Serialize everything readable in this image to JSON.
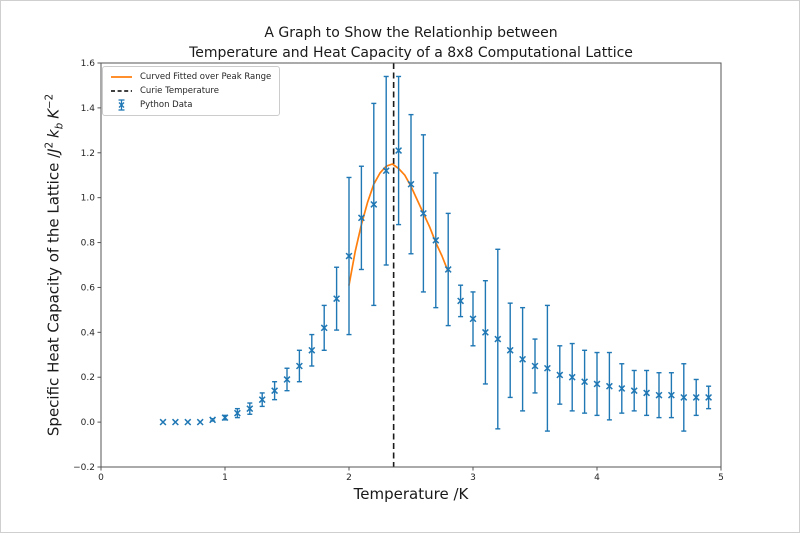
{
  "figure": {
    "title_line1": "A Graph to Show the Relationhip between",
    "title_line2": "Temperature and Heat Capacity of a 8x8 Computational Lattice",
    "xlabel": "Temperature /K",
    "ylabel_parts": {
      "p1": "Specific Heat Capacity of the Lattice /",
      "j": "J",
      "j_sup": "2",
      "k": "k",
      "k_sub": "b",
      "K": "K",
      "K_sup": "−2"
    }
  },
  "legend": {
    "items": [
      {
        "label": "Curved Fitted over Peak Range",
        "type": "line",
        "color": "#ff7f0e"
      },
      {
        "label": "Curie Temperature",
        "type": "dashed",
        "color": "#262626"
      },
      {
        "label": "Python Data",
        "type": "errorbar",
        "color": "#1f77b4"
      }
    ]
  },
  "chart_data": {
    "type": "scatter",
    "title": "A Graph to Show the Relationhip between Temperature and Heat Capacity of a 8x8 Computational Lattice",
    "xlabel": "Temperature /K",
    "ylabel": "Specific Heat Capacity of the Lattice /J^2 k_b K^-2",
    "xlim": [
      0,
      5
    ],
    "ylim": [
      -0.2,
      1.6
    ],
    "xticks": [
      0,
      1,
      2,
      3,
      4,
      5
    ],
    "xtick_labels": [
      "0",
      "1",
      "2",
      "3",
      "4",
      "5"
    ],
    "yticks": [
      -0.2,
      0.0,
      0.2,
      0.4,
      0.6,
      0.8,
      1.0,
      1.2,
      1.4,
      1.6
    ],
    "ytick_labels": [
      "−0.2",
      "0.0",
      "0.2",
      "0.4",
      "0.6",
      "0.8",
      "1.0",
      "1.2",
      "1.4",
      "1.6"
    ],
    "grid": false,
    "legend_position": "upper left",
    "curie_temperature": 2.36,
    "colors": {
      "data": "#1f77b4",
      "fit": "#ff7f0e",
      "curie": "#1a1a1a"
    },
    "series": [
      {
        "name": "Python Data",
        "type": "errorbar",
        "color": "#1f77b4",
        "x": [
          0.5,
          0.6,
          0.7,
          0.8,
          0.9,
          1.0,
          1.1,
          1.2,
          1.3,
          1.4,
          1.5,
          1.6,
          1.7,
          1.8,
          1.9,
          2.0,
          2.1,
          2.2,
          2.3,
          2.4,
          2.5,
          2.6,
          2.7,
          2.8,
          2.9,
          3.0,
          3.1,
          3.2,
          3.3,
          3.4,
          3.5,
          3.6,
          3.7,
          3.8,
          3.9,
          4.0,
          4.1,
          4.2,
          4.3,
          4.4,
          4.5,
          4.6,
          4.7,
          4.8,
          4.9
        ],
        "y": [
          0.0,
          0.0,
          0.0,
          0.0,
          0.01,
          0.02,
          0.04,
          0.06,
          0.1,
          0.14,
          0.19,
          0.25,
          0.32,
          0.42,
          0.55,
          0.74,
          0.91,
          0.97,
          1.12,
          1.21,
          1.06,
          0.93,
          0.81,
          0.68,
          0.54,
          0.46,
          0.4,
          0.37,
          0.32,
          0.28,
          0.25,
          0.24,
          0.21,
          0.2,
          0.18,
          0.17,
          0.16,
          0.15,
          0.14,
          0.13,
          0.12,
          0.12,
          0.11,
          0.11,
          0.11
        ],
        "yerr": [
          0,
          0,
          0,
          0,
          0.005,
          0.01,
          0.02,
          0.025,
          0.03,
          0.04,
          0.05,
          0.07,
          0.07,
          0.1,
          0.14,
          0.35,
          0.23,
          0.45,
          0.42,
          0.33,
          0.31,
          0.35,
          0.3,
          0.25,
          0.07,
          0.12,
          0.23,
          0.4,
          0.21,
          0.23,
          0.12,
          0.28,
          0.13,
          0.15,
          0.14,
          0.14,
          0.15,
          0.11,
          0.09,
          0.1,
          0.1,
          0.1,
          0.15,
          0.08,
          0.05
        ]
      },
      {
        "name": "Curved Fitted over Peak Range",
        "type": "line",
        "color": "#ff7f0e",
        "x": [
          2.0,
          2.05,
          2.1,
          2.15,
          2.2,
          2.25,
          2.3,
          2.35,
          2.4,
          2.45,
          2.5,
          2.55,
          2.6,
          2.65,
          2.7,
          2.75,
          2.8
        ],
        "y": [
          0.61,
          0.76,
          0.88,
          0.98,
          1.06,
          1.11,
          1.14,
          1.15,
          1.13,
          1.1,
          1.05,
          0.99,
          0.93,
          0.87,
          0.8,
          0.74,
          0.67
        ]
      }
    ]
  }
}
